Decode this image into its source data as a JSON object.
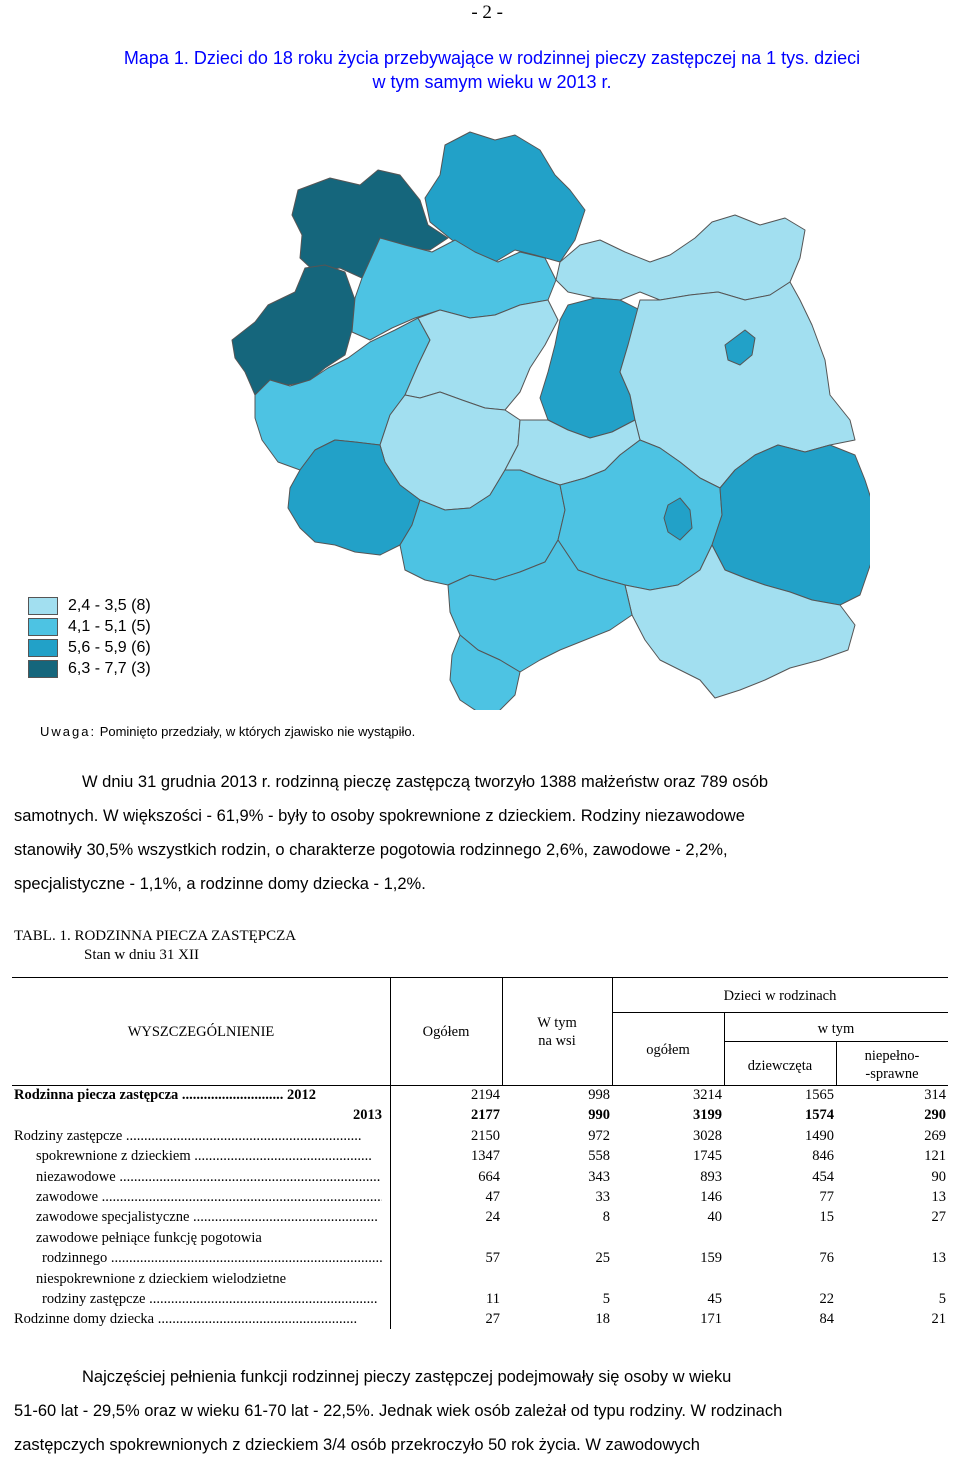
{
  "page_number": "- 2 -",
  "map": {
    "title_line1": "Mapa 1. Dzieci do 18 roku życia przebywające w rodzinnej pieczy zastępczej na 1 tys. dzieci",
    "title_line2": "w tym samym wieku w 2013 r.",
    "colors": {
      "c1": "#a2dff0",
      "c2": "#4dc3e3",
      "c3": "#22a1c8",
      "c4": "#15667c"
    },
    "legend": [
      {
        "label": "2,4 - 3,5 (8)",
        "color": "#a2dff0"
      },
      {
        "label": "4,1 - 5,1 (5)",
        "color": "#4dc3e3"
      },
      {
        "label": "5,6 - 5,9 (6)",
        "color": "#22a1c8"
      },
      {
        "label": "6,3 - 7,7 (3)",
        "color": "#15667c"
      }
    ],
    "note_prefix": "Uwaga:",
    "note_text": " Pominięto przedziały, w których zjawisko nie wystąpiło."
  },
  "paragraph1": [
    "W dniu 31 grudnia 2013 r. rodzinną pieczę zastępczą tworzyło 1388 małżeństw oraz 789 osób",
    "samotnych. W większości - 61,9% -  były to osoby spokrewnione z dzieckiem. Rodziny niezawodowe",
    "stanowiły 30,5% wszystkich rodzin, o charakterze pogotowia rodzinnego 2,6%, zawodowe - 2,2%,",
    "specjalistyczne - 1,1%, a rodzinne domy dziecka - 1,2%."
  ],
  "table": {
    "title": "TABL. 1. RODZINNA PIECZA ZASTĘPCZA",
    "subtitle": "Stan w dniu 31 XII",
    "headers": {
      "spec": "WYSZCZEGÓLNIENIE",
      "total": "Ogółem",
      "rural_1": "W tym",
      "rural_2": "na wsi",
      "children": "Dzieci w rodzinach",
      "children_total": "ogółem",
      "of_which": "w tym",
      "girls": "dziewczęta",
      "disabled_1": "niepełno-",
      "disabled_2": "-sprawne"
    },
    "rows": [
      {
        "label": "Rodzinna piecza zastępcza ............................ 2012",
        "values": [
          "2194",
          "998",
          "3214",
          "1565",
          "314"
        ],
        "bold_label": true,
        "bold_values": false
      },
      {
        "label": "2013",
        "values": [
          "2177",
          "990",
          "3199",
          "1574",
          "290"
        ],
        "bold_label": true,
        "bold_values": true,
        "label_right": true
      },
      {
        "label": "Rodziny zastępcze .................................................................",
        "values": [
          "2150",
          "972",
          "3028",
          "1490",
          "269"
        ]
      },
      {
        "label": "spokrewnione z dzieckiem .................................................",
        "values": [
          "1347",
          "558",
          "1745",
          "846",
          "121"
        ],
        "indent": 1
      },
      {
        "label": "niezawodowe ........................................................................",
        "values": [
          "664",
          "343",
          "893",
          "454",
          "90"
        ],
        "indent": 1
      },
      {
        "label": "zawodowe ..............................................................................",
        "values": [
          "47",
          "33",
          "146",
          "77",
          "13"
        ],
        "indent": 1
      },
      {
        "label": "zawodowe specjalistyczne ...................................................",
        "values": [
          "24",
          "8",
          "40",
          "15",
          "27"
        ],
        "indent": 1
      },
      {
        "label": "zawodowe pełniące funkcję pogotowia",
        "values": [
          "",
          "",
          "",
          "",
          ""
        ],
        "indent": 1
      },
      {
        "label": "rodzinnego ...........................................................................",
        "values": [
          "57",
          "25",
          "159",
          "76",
          "13"
        ],
        "indent": 2
      },
      {
        "label": "niespokrewnione z dzieckiem wielodzietne",
        "values": [
          "",
          "",
          "",
          "",
          ""
        ],
        "indent": 1
      },
      {
        "label": "rodziny zastępcze ...............................................................",
        "values": [
          "11",
          "5",
          "45",
          "22",
          "5"
        ],
        "indent": 2
      },
      {
        "label": "Rodzinne domy dziecka .......................................................",
        "values": [
          "27",
          "18",
          "171",
          "84",
          "21"
        ]
      }
    ]
  },
  "paragraph3": [
    "Najczęściej pełnienia funkcji rodzinnej pieczy zastępczej podejmowały się osoby w wieku",
    "51-60 lat - 29,5% oraz w wieku 61-70 lat - 22,5%. Jednak wiek osób zależał od typu rodziny. W rodzinach",
    "zastępczych spokrewnionych z dzieckiem 3/4 osób przekroczyło 50 rok życia. W zawodowych"
  ]
}
